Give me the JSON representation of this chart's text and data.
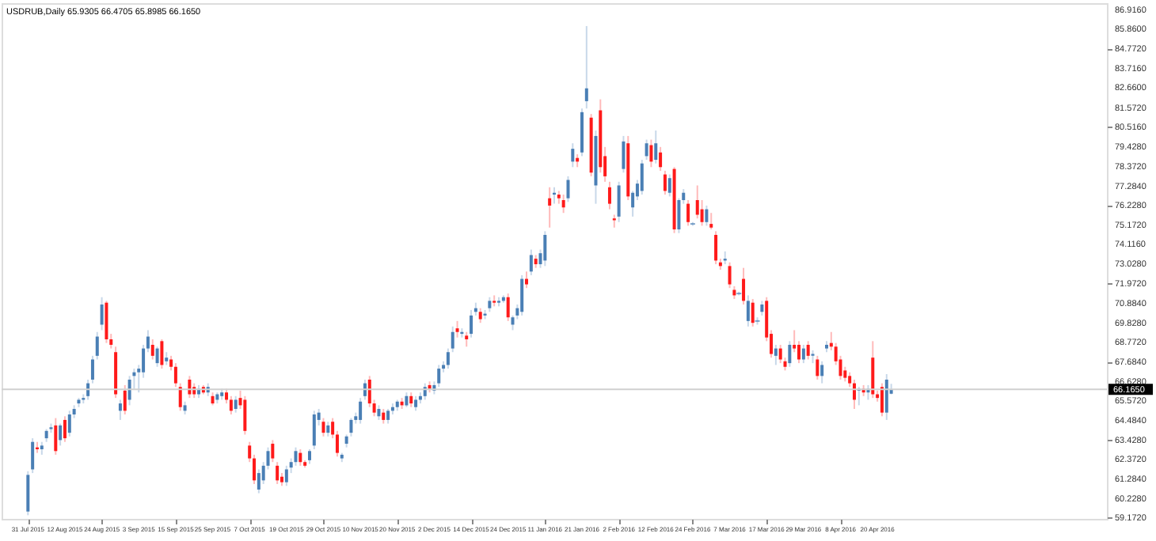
{
  "chart_data": {
    "type": "candlestick",
    "title": "USDRUB,Daily  65.9305 66.4705 65.8985 66.1650",
    "categories": [
      "31 Jul 2015",
      null,
      null,
      null,
      null,
      null,
      null,
      null,
      "12 Aug 2015",
      null,
      null,
      null,
      null,
      null,
      null,
      null,
      "24 Aug 2015",
      null,
      null,
      null,
      null,
      null,
      null,
      null,
      "3 Sep 2015",
      null,
      null,
      null,
      null,
      null,
      null,
      null,
      "15 Sep 2015",
      null,
      null,
      null,
      null,
      null,
      null,
      null,
      "25 Sep 2015",
      null,
      null,
      null,
      null,
      null,
      null,
      null,
      "7 Oct 2015",
      null,
      null,
      null,
      null,
      null,
      null,
      null,
      "19 Oct 2015",
      null,
      null,
      null,
      null,
      null,
      null,
      null,
      "29 Oct 2015",
      null,
      null,
      null,
      null,
      null,
      null,
      null,
      "10 Nov 2015",
      null,
      null,
      null,
      null,
      null,
      null,
      null,
      "20 Nov 2015",
      null,
      null,
      null,
      null,
      null,
      null,
      null,
      "2 Dec 2015",
      null,
      null,
      null,
      null,
      null,
      null,
      null,
      "14 Dec 2015",
      null,
      null,
      null,
      null,
      null,
      null,
      null,
      "24 Dec 2015",
      null,
      null,
      null,
      null,
      null,
      null,
      null,
      "11 Jan 2016",
      null,
      null,
      null,
      null,
      null,
      null,
      null,
      "21 Jan 2016",
      null,
      null,
      null,
      null,
      null,
      null,
      null,
      "2 Feb 2016",
      null,
      null,
      null,
      null,
      null,
      null,
      null,
      "12 Feb 2016",
      null,
      null,
      null,
      null,
      null,
      null,
      null,
      "24 Feb 2016",
      null,
      null,
      null,
      null,
      null,
      null,
      null,
      "7 Mar 2016",
      null,
      null,
      null,
      null,
      null,
      null,
      null,
      "17 Mar 2016",
      null,
      null,
      null,
      null,
      null,
      null,
      null,
      "29 Mar 2016",
      null,
      null,
      null,
      null,
      null,
      null,
      null,
      "8 Apr 2016",
      null,
      null,
      null,
      null,
      null,
      null,
      null,
      "20 Apr 2016",
      null,
      null,
      null,
      null,
      null,
      null,
      null,
      null,
      null,
      null,
      null,
      null,
      null,
      null,
      null,
      null,
      null,
      null,
      null,
      null,
      null,
      null,
      null,
      null,
      null,
      null,
      null,
      null,
      null,
      null,
      null,
      null,
      null,
      null,
      null,
      null,
      null,
      null,
      null,
      null,
      null,
      null,
      null,
      null,
      null,
      null,
      null
    ],
    "ohlc": [
      [
        59.5,
        61.7,
        59.3,
        61.5
      ],
      [
        61.8,
        63.5,
        61.6,
        63.3
      ],
      [
        63.0,
        63.3,
        62.7,
        62.9
      ],
      [
        62.9,
        63.3,
        62.6,
        63.1
      ],
      [
        63.5,
        64.0,
        63.3,
        63.9
      ],
      [
        64.0,
        64.3,
        63.8,
        64.1
      ],
      [
        64.2,
        64.6,
        62.6,
        62.8
      ],
      [
        63.4,
        64.3,
        63.1,
        64.2
      ],
      [
        64.5,
        64.7,
        63.3,
        63.5
      ],
      [
        63.8,
        65.0,
        63.6,
        64.8
      ],
      [
        64.8,
        65.3,
        64.6,
        65.1
      ],
      [
        65.4,
        65.7,
        65.2,
        65.6
      ],
      [
        65.6,
        65.9,
        65.4,
        65.7
      ],
      [
        65.8,
        66.7,
        65.6,
        66.5
      ],
      [
        66.7,
        68.0,
        66.5,
        67.8
      ],
      [
        68.0,
        69.3,
        67.8,
        69.05
      ],
      [
        69.7,
        71.2,
        69.4,
        70.8
      ],
      [
        70.9,
        71.0,
        68.7,
        68.9
      ],
      [
        68.9,
        69.2,
        68.4,
        68.6
      ],
      [
        68.2,
        68.5,
        65.7,
        65.9
      ],
      [
        65.0,
        65.6,
        64.5,
        65.4
      ],
      [
        66.1,
        66.4,
        64.8,
        65.0
      ],
      [
        65.6,
        66.9,
        65.3,
        66.7
      ],
      [
        66.9,
        67.3,
        66.2,
        67.1
      ],
      [
        67.1,
        67.5,
        66.0,
        67.3
      ],
      [
        67.1,
        68.6,
        66.8,
        68.4
      ],
      [
        68.4,
        69.4,
        68.2,
        69.05
      ],
      [
        68.6,
        68.9,
        67.8,
        68.0
      ],
      [
        67.6,
        68.5,
        67.4,
        68.4
      ],
      [
        68.8,
        68.9,
        67.3,
        67.5
      ],
      [
        67.7,
        68.2,
        67.5,
        67.9
      ],
      [
        67.8,
        68.0,
        67.2,
        67.4
      ],
      [
        67.4,
        67.6,
        66.3,
        66.5
      ],
      [
        66.3,
        66.5,
        65.0,
        65.2
      ],
      [
        65.0,
        65.5,
        64.8,
        65.3
      ],
      [
        66.7,
        66.9,
        65.7,
        65.9
      ],
      [
        66.3,
        66.5,
        65.7,
        65.9
      ],
      [
        65.9,
        66.4,
        65.7,
        66.2
      ],
      [
        66.3,
        66.4,
        65.9,
        66.0
      ],
      [
        66.0,
        66.5,
        65.8,
        66.3
      ],
      [
        65.8,
        66.0,
        65.3,
        65.4
      ],
      [
        65.6,
        66.0,
        65.4,
        65.9
      ],
      [
        65.8,
        66.2,
        65.6,
        66.0
      ],
      [
        66.0,
        66.2,
        65.4,
        65.6
      ],
      [
        65.6,
        65.8,
        64.8,
        65.0
      ],
      [
        65.1,
        65.8,
        64.9,
        65.6
      ],
      [
        65.7,
        66.1,
        65.1,
        65.3
      ],
      [
        65.6,
        65.8,
        63.7,
        63.9
      ],
      [
        63.1,
        63.3,
        62.2,
        62.4
      ],
      [
        62.4,
        62.6,
        61.0,
        61.2
      ],
      [
        60.7,
        61.8,
        60.5,
        61.6
      ],
      [
        61.2,
        62.2,
        61.0,
        62.0
      ],
      [
        62.0,
        63.0,
        61.8,
        62.8
      ],
      [
        63.2,
        63.4,
        62.2,
        62.4
      ],
      [
        62.0,
        62.2,
        61.0,
        61.2
      ],
      [
        61.4,
        61.6,
        60.9,
        61.1
      ],
      [
        61.1,
        62.0,
        60.9,
        61.8
      ],
      [
        61.9,
        62.4,
        61.6,
        62.2
      ],
      [
        62.2,
        63.0,
        62.0,
        62.8
      ],
      [
        62.7,
        62.9,
        62.0,
        62.2
      ],
      [
        62.2,
        62.3,
        61.9,
        62.0
      ],
      [
        62.3,
        62.9,
        62.1,
        62.8
      ],
      [
        63.1,
        65.0,
        62.9,
        64.8
      ],
      [
        64.5,
        65.1,
        64.2,
        64.9
      ],
      [
        64.4,
        64.6,
        63.6,
        63.8
      ],
      [
        63.8,
        64.4,
        63.6,
        64.2
      ],
      [
        64.4,
        64.6,
        63.5,
        63.7
      ],
      [
        63.7,
        63.9,
        62.5,
        62.7
      ],
      [
        62.4,
        62.7,
        62.2,
        62.6
      ],
      [
        63.2,
        63.7,
        63.0,
        63.6
      ],
      [
        63.8,
        64.6,
        63.6,
        64.5
      ],
      [
        64.5,
        64.9,
        64.3,
        64.7
      ],
      [
        64.5,
        65.7,
        64.3,
        65.5
      ],
      [
        65.8,
        66.7,
        65.6,
        66.5
      ],
      [
        66.7,
        66.9,
        65.2,
        65.4
      ],
      [
        65.4,
        65.6,
        64.7,
        64.9
      ],
      [
        64.7,
        65.3,
        64.5,
        65.1
      ],
      [
        64.9,
        65.1,
        64.3,
        64.5
      ],
      [
        64.5,
        65.1,
        64.3,
        65.0
      ],
      [
        65.0,
        65.4,
        64.8,
        65.2
      ],
      [
        65.2,
        65.6,
        65.0,
        65.5
      ],
      [
        65.5,
        65.7,
        65.1,
        65.3
      ],
      [
        65.3,
        66.0,
        65.2,
        65.8
      ],
      [
        65.8,
        66.0,
        65.2,
        65.4
      ],
      [
        65.2,
        65.8,
        65.0,
        65.6
      ],
      [
        65.6,
        66.0,
        65.4,
        65.8
      ],
      [
        65.8,
        66.5,
        65.6,
        66.3
      ],
      [
        66.4,
        66.6,
        66.0,
        66.2
      ],
      [
        66.1,
        66.6,
        65.9,
        66.4
      ],
      [
        66.5,
        67.5,
        66.3,
        67.3
      ],
      [
        67.3,
        67.7,
        67.1,
        67.5
      ],
      [
        67.5,
        68.4,
        67.3,
        68.2
      ],
      [
        68.4,
        69.6,
        68.2,
        69.3
      ],
      [
        69.5,
        69.9,
        69.0,
        69.3
      ],
      [
        69.2,
        69.5,
        69.0,
        69.3
      ],
      [
        69.1,
        69.3,
        68.5,
        68.9
      ],
      [
        69.2,
        70.5,
        69.0,
        70.2
      ],
      [
        70.4,
        70.9,
        70.2,
        70.6
      ],
      [
        70.4,
        70.6,
        69.8,
        70.0
      ],
      [
        70.2,
        70.5,
        70.0,
        70.3
      ],
      [
        70.6,
        71.2,
        70.4,
        71.0
      ],
      [
        71.0,
        71.3,
        70.7,
        70.9
      ],
      [
        70.9,
        71.2,
        70.7,
        71.0
      ],
      [
        71.0,
        71.3,
        70.9,
        71.2
      ],
      [
        71.2,
        71.4,
        69.9,
        70.1
      ],
      [
        69.7,
        70.2,
        69.4,
        70.1
      ],
      [
        70.2,
        70.8,
        70.0,
        70.6
      ],
      [
        70.4,
        72.4,
        70.2,
        72.2
      ],
      [
        72.2,
        72.6,
        71.7,
        71.9
      ],
      [
        72.6,
        73.8,
        72.4,
        73.5
      ],
      [
        73.3,
        73.5,
        72.8,
        73.0
      ],
      [
        73.0,
        73.8,
        72.8,
        73.6
      ],
      [
        73.2,
        74.8,
        72.9,
        74.6
      ],
      [
        76.6,
        77.2,
        75.0,
        76.2
      ],
      [
        76.8,
        77.2,
        76.3,
        76.9
      ],
      [
        76.8,
        77.0,
        76.3,
        76.6
      ],
      [
        76.5,
        76.8,
        75.8,
        76.1
      ],
      [
        76.6,
        77.8,
        76.4,
        77.6
      ],
      [
        78.6,
        79.6,
        78.3,
        79.3
      ],
      [
        78.8,
        79.0,
        78.3,
        78.6
      ],
      [
        79.1,
        81.5,
        78.9,
        81.3
      ],
      [
        81.9,
        86.0,
        81.5,
        82.6
      ],
      [
        81.0,
        81.2,
        77.8,
        78.0
      ],
      [
        77.3,
        80.3,
        76.3,
        80.0
      ],
      [
        81.4,
        82.0,
        78.0,
        78.3
      ],
      [
        78.9,
        79.4,
        77.5,
        77.8
      ],
      [
        77.2,
        77.5,
        76.0,
        76.3
      ],
      [
        75.5,
        75.7,
        75.0,
        75.4
      ],
      [
        75.6,
        77.5,
        75.3,
        77.3
      ],
      [
        78.2,
        80.0,
        78.0,
        79.7
      ],
      [
        79.6,
        80.0,
        76.5,
        76.7
      ],
      [
        76.1,
        77.0,
        75.6,
        76.9
      ],
      [
        76.7,
        77.6,
        76.5,
        77.4
      ],
      [
        77.0,
        78.7,
        76.8,
        78.5
      ],
      [
        78.9,
        79.8,
        78.7,
        79.6
      ],
      [
        79.5,
        79.8,
        78.3,
        78.6
      ],
      [
        78.7,
        80.3,
        78.5,
        79.6
      ],
      [
        79.1,
        79.4,
        78.1,
        78.3
      ],
      [
        77.9,
        78.1,
        76.8,
        77.0
      ],
      [
        76.9,
        77.9,
        76.7,
        77.7
      ],
      [
        78.2,
        78.3,
        74.7,
        74.9
      ],
      [
        74.9,
        76.6,
        74.7,
        76.5
      ],
      [
        76.5,
        77.1,
        76.3,
        76.9
      ],
      [
        76.3,
        76.5,
        75.1,
        75.3
      ],
      [
        75.2,
        75.3,
        75.1,
        75.2
      ],
      [
        76.5,
        77.3,
        75.5,
        75.7
      ],
      [
        76.0,
        76.5,
        75.1,
        75.3
      ],
      [
        75.3,
        76.2,
        75.1,
        76.0
      ],
      [
        75.2,
        75.8,
        74.9,
        75.0
      ],
      [
        74.6,
        74.8,
        73.0,
        73.2
      ],
      [
        73.1,
        73.3,
        72.7,
        72.9
      ],
      [
        73.3,
        73.7,
        73.0,
        73.2
      ],
      [
        72.9,
        73.1,
        71.7,
        71.9
      ],
      [
        71.6,
        71.8,
        71.1,
        71.3
      ],
      [
        71.4,
        71.5,
        71.3,
        71.4
      ],
      [
        72.2,
        72.8,
        70.8,
        71.0
      ],
      [
        69.9,
        71.3,
        69.6,
        71.0
      ],
      [
        70.9,
        71.1,
        69.6,
        69.8
      ],
      [
        69.9,
        70.1,
        69.7,
        69.9
      ],
      [
        70.4,
        71.0,
        70.2,
        70.8
      ],
      [
        71.0,
        71.2,
        68.8,
        69.0
      ],
      [
        69.2,
        69.4,
        67.9,
        68.1
      ],
      [
        68.0,
        68.6,
        67.5,
        68.4
      ],
      [
        68.4,
        68.6,
        67.6,
        67.8
      ],
      [
        67.7,
        67.9,
        67.2,
        67.4
      ],
      [
        67.6,
        68.8,
        67.4,
        68.6
      ],
      [
        68.6,
        69.4,
        68.2,
        68.4
      ],
      [
        68.6,
        68.8,
        67.6,
        67.8
      ],
      [
        67.8,
        68.6,
        67.6,
        68.4
      ],
      [
        68.6,
        68.8,
        67.8,
        68.0
      ],
      [
        68.0,
        68.3,
        67.6,
        68.1
      ],
      [
        67.8,
        68.0,
        66.7,
        66.9
      ],
      [
        66.9,
        67.7,
        66.5,
        67.5
      ],
      [
        68.4,
        68.8,
        68.2,
        68.6
      ],
      [
        68.7,
        69.3,
        68.3,
        68.5
      ],
      [
        68.5,
        68.7,
        67.5,
        67.7
      ],
      [
        67.8,
        68.0,
        66.7,
        66.9
      ],
      [
        67.2,
        67.4,
        66.6,
        66.8
      ],
      [
        66.9,
        67.1,
        66.3,
        66.5
      ],
      [
        66.5,
        66.7,
        65.1,
        65.6
      ],
      [
        66.1,
        66.3,
        65.3,
        66.2
      ],
      [
        66.2,
        66.4,
        65.8,
        66.0
      ],
      [
        66.0,
        66.4,
        65.6,
        66.2
      ],
      [
        67.9,
        68.8,
        65.7,
        65.9
      ],
      [
        65.9,
        66.1,
        65.5,
        65.7
      ],
      [
        66.3,
        66.5,
        64.7,
        64.9
      ],
      [
        64.9,
        67.0,
        64.5,
        66.7
      ],
      [
        65.9305,
        66.4705,
        65.8985,
        66.165
      ],
      null,
      null,
      null,
      null,
      null,
      null,
      null,
      null,
      null,
      null,
      null,
      null,
      null,
      null,
      null,
      null,
      null,
      null,
      null,
      null,
      null,
      null,
      null,
      null,
      null,
      null,
      null,
      null,
      null,
      null,
      null,
      null,
      null,
      null,
      null,
      null,
      null,
      null,
      null,
      null,
      null,
      null,
      null,
      null
    ],
    "colors": [
      "#4a7fb5",
      "#4a7fb5",
      "#ff1a1a",
      "#4a7fb5",
      "#4a7fb5",
      "#4a7fb5",
      "#ff1a1a",
      "#4a7fb5",
      "#ff1a1a",
      "#4a7fb5",
      "#4a7fb5",
      "#4a7fb5",
      "#4a7fb5",
      "#4a7fb5",
      "#4a7fb5",
      "#4a7fb5",
      "#4a7fb5",
      "#ff1a1a",
      "#ff1a1a",
      "#ff1a1a",
      "#4a7fb5",
      "#ff1a1a",
      "#4a7fb5",
      "#4a7fb5",
      "#4a7fb5",
      "#4a7fb5",
      "#4a7fb5",
      "#ff1a1a",
      "#4a7fb5",
      "#ff1a1a",
      "#4a7fb5",
      "#ff1a1a",
      "#ff1a1a",
      "#ff1a1a",
      "#4a7fb5",
      "#ff1a1a",
      "#ff1a1a",
      "#4a7fb5",
      "#ff1a1a",
      "#4a7fb5",
      "#ff1a1a",
      "#4a7fb5",
      "#4a7fb5",
      "#ff1a1a",
      "#ff1a1a",
      "#4a7fb5",
      "#ff1a1a",
      "#ff1a1a",
      "#ff1a1a",
      "#ff1a1a",
      "#4a7fb5",
      "#4a7fb5",
      "#4a7fb5",
      "#ff1a1a",
      "#ff1a1a",
      "#ff1a1a",
      "#4a7fb5",
      "#4a7fb5",
      "#4a7fb5",
      "#ff1a1a",
      "#ff1a1a",
      "#4a7fb5",
      "#4a7fb5",
      "#4a7fb5",
      "#ff1a1a",
      "#4a7fb5",
      "#ff1a1a",
      "#ff1a1a",
      "#4a7fb5",
      "#4a7fb5",
      "#4a7fb5",
      "#4a7fb5",
      "#4a7fb5",
      "#4a7fb5",
      "#ff1a1a",
      "#ff1a1a",
      "#4a7fb5",
      "#ff1a1a",
      "#4a7fb5",
      "#4a7fb5",
      "#4a7fb5",
      "#ff1a1a",
      "#4a7fb5",
      "#ff1a1a",
      "#4a7fb5",
      "#4a7fb5",
      "#4a7fb5",
      "#ff1a1a",
      "#4a7fb5",
      "#4a7fb5",
      "#4a7fb5",
      "#4a7fb5",
      "#4a7fb5",
      "#ff1a1a",
      "#4a7fb5",
      "#ff1a1a",
      "#4a7fb5",
      "#4a7fb5",
      "#ff1a1a",
      "#4a7fb5",
      "#4a7fb5",
      "#ff1a1a",
      "#4a7fb5",
      "#4a7fb5",
      "#ff1a1a",
      "#4a7fb5",
      "#4a7fb5",
      "#4a7fb5",
      "#ff1a1a",
      "#4a7fb5",
      "#ff1a1a",
      "#4a7fb5",
      "#4a7fb5",
      "#ff1a1a",
      "#4a7fb5",
      "#ff1a1a",
      "#ff1a1a",
      "#4a7fb5",
      "#4a7fb5",
      "#ff1a1a",
      "#4a7fb5",
      "#4a7fb5",
      "#ff1a1a",
      "#4a7fb5",
      "#ff1a1a",
      "#ff1a1a",
      "#ff1a1a",
      "#ff1a1a",
      "#4a7fb5",
      "#4a7fb5",
      "#ff1a1a",
      "#4a7fb5",
      "#4a7fb5",
      "#4a7fb5",
      "#4a7fb5",
      "#ff1a1a",
      "#4a7fb5",
      "#ff1a1a",
      "#ff1a1a",
      "#4a7fb5",
      "#ff1a1a",
      "#4a7fb5",
      "#4a7fb5",
      "#ff1a1a",
      "#4a7fb5",
      "#ff1a1a",
      "#ff1a1a",
      "#4a7fb5",
      "#ff1a1a",
      "#ff1a1a",
      "#ff1a1a",
      "#4a7fb5",
      "#ff1a1a",
      "#ff1a1a",
      "#4a7fb5",
      "#ff1a1a",
      "#4a7fb5",
      "#ff1a1a",
      "#4a7fb5",
      "#4a7fb5",
      "#ff1a1a",
      "#ff1a1a",
      "#4a7fb5",
      "#ff1a1a",
      "#ff1a1a",
      "#4a7fb5",
      "#ff1a1a",
      "#ff1a1a",
      "#4a7fb5",
      "#ff1a1a",
      "#4a7fb5",
      "#ff1a1a",
      "#4a7fb5",
      "#4a7fb5",
      "#ff1a1a",
      "#ff1a1a",
      "#ff1a1a",
      "#ff1a1a",
      "#ff1a1a",
      "#ff1a1a",
      "#4a7fb5",
      "#ff1a1a",
      "#4a7fb5",
      "#ff1a1a",
      "#ff1a1a",
      "#ff1a1a",
      "#4a7fb5",
      "#4a7fb5",
      null,
      null,
      null,
      null,
      null,
      null,
      null,
      null,
      null,
      null,
      null,
      null,
      null,
      null,
      null,
      null,
      null,
      null,
      null,
      null,
      null,
      null,
      null,
      null,
      null,
      null,
      null,
      null,
      null,
      null,
      null,
      null,
      null,
      null,
      null,
      null,
      null,
      null,
      null,
      null,
      null,
      null,
      null,
      null
    ],
    "ylim": [
      59.1,
      87.25
    ],
    "yticks": [
      {
        "value": 86.916,
        "label": "86.9160"
      },
      {
        "value": 85.86,
        "label": "85.8600"
      },
      {
        "value": 84.772,
        "label": "84.7720"
      },
      {
        "value": 83.716,
        "label": "83.7160"
      },
      {
        "value": 82.66,
        "label": "82.6600"
      },
      {
        "value": 81.572,
        "label": "81.5720"
      },
      {
        "value": 80.516,
        "label": "80.5160"
      },
      {
        "value": 79.428,
        "label": "79.4280"
      },
      {
        "value": 78.372,
        "label": "78.3720"
      },
      {
        "value": 77.284,
        "label": "77.2840"
      },
      {
        "value": 76.228,
        "label": "76.2280"
      },
      {
        "value": 75.172,
        "label": "75.1720"
      },
      {
        "value": 74.116,
        "label": "74.1160"
      },
      {
        "value": 73.028,
        "label": "73.0280"
      },
      {
        "value": 71.972,
        "label": "71.9720"
      },
      {
        "value": 70.884,
        "label": "70.8840"
      },
      {
        "value": 69.828,
        "label": "69.8280"
      },
      {
        "value": 68.772,
        "label": "68.7720"
      },
      {
        "value": 67.684,
        "label": "67.6840"
      },
      {
        "value": 66.628,
        "label": "66.6280"
      },
      {
        "value": 65.572,
        "label": "65.5720"
      },
      {
        "value": 64.484,
        "label": "64.4840"
      },
      {
        "value": 63.428,
        "label": "63.4280"
      },
      {
        "value": 62.372,
        "label": "62.3720"
      },
      {
        "value": 61.284,
        "label": "61.2840"
      },
      {
        "value": 60.228,
        "label": "60.2280"
      },
      {
        "value": 59.172,
        "label": "59.1720"
      }
    ],
    "ref_lines": [
      {
        "axis": "y",
        "value": 66.165,
        "label": "66.1650",
        "color": "#d0d0d0"
      }
    ],
    "grid": false
  }
}
